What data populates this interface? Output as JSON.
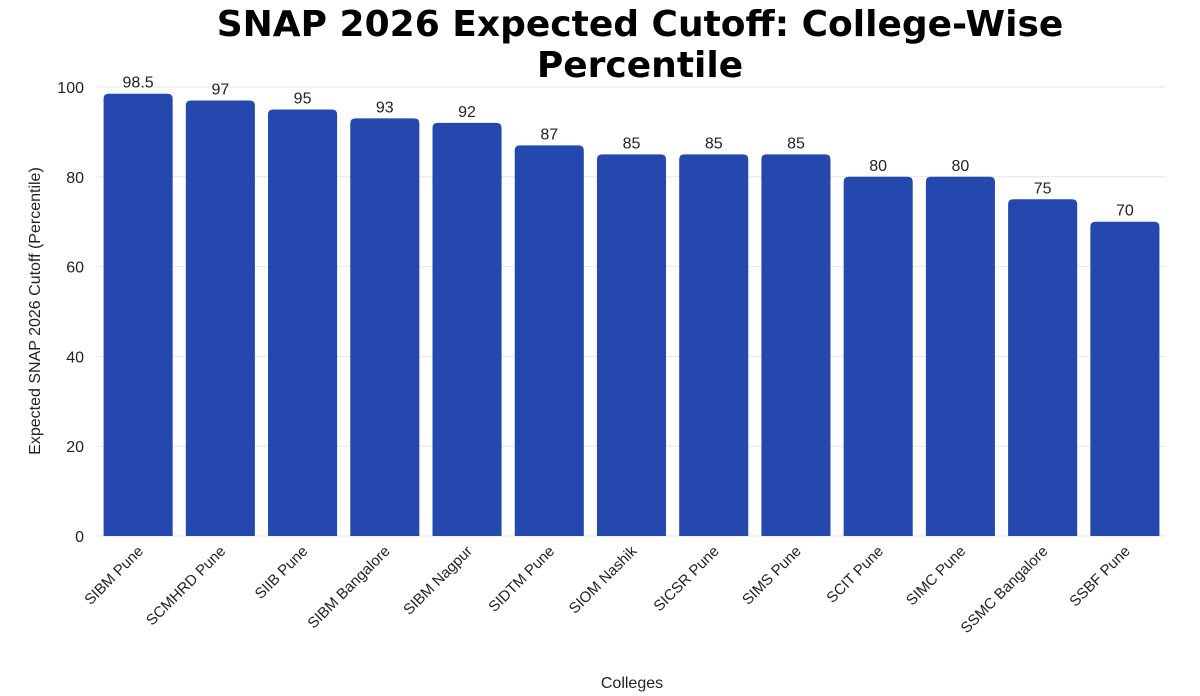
{
  "chart_data": {
    "type": "bar",
    "title": "SNAP 2026 Expected Cutoff: College-Wise Percentile",
    "xlabel": "Colleges",
    "ylabel": "Expected SNAP 2026 Cutoff (Percentile)",
    "categories": [
      "SIBM Pune",
      "SCMHRD Pune",
      "SIIB Pune",
      "SIBM Bangalore",
      "SIBM Nagpur",
      "SIDTM Pune",
      "SIOM Nashik",
      "SICSR Pune",
      "SIMS Pune",
      "SCIT Pune",
      "SIMC Pune",
      "SSMC Bangalore",
      "SSBF Pune"
    ],
    "values": [
      98.5,
      97,
      95,
      93,
      92,
      87,
      85,
      85,
      85,
      80,
      80,
      75,
      70
    ],
    "value_labels": [
      "98.5",
      "97",
      "95",
      "93",
      "92",
      "87",
      "85",
      "85",
      "85",
      "80",
      "80",
      "75",
      "70"
    ],
    "ylim": [
      0,
      100
    ],
    "yticks": [
      0,
      20,
      40,
      60,
      80,
      100
    ],
    "grid": true,
    "legend": "none",
    "bar_color": "#2448ad"
  }
}
